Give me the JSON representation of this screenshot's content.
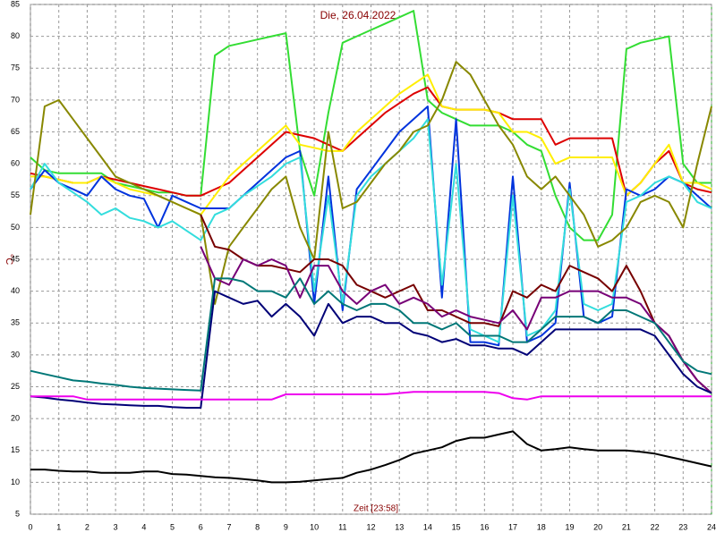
{
  "chart_data": {
    "type": "line",
    "title": "Die, 26.04.2022",
    "xlabel": "Zeit [23:58]",
    "ylabel": "°C",
    "xlim": [
      0,
      24
    ],
    "ylim": [
      5,
      85
    ],
    "grid": true,
    "xticks": [
      0,
      1,
      2,
      3,
      4,
      5,
      6,
      7,
      8,
      9,
      10,
      11,
      12,
      13,
      14,
      15,
      16,
      17,
      18,
      19,
      20,
      21,
      22,
      23,
      24
    ],
    "yticks": [
      5,
      10,
      15,
      20,
      25,
      30,
      35,
      40,
      45,
      50,
      55,
      60,
      65,
      70,
      75,
      80,
      85
    ],
    "x": [
      0,
      0.5,
      1,
      1.5,
      2,
      2.5,
      3,
      3.5,
      4,
      4.5,
      5,
      5.5,
      6,
      6.5,
      7,
      7.5,
      8,
      8.5,
      9,
      9.5,
      10,
      10.5,
      11,
      11.5,
      12,
      12.5,
      13,
      13.5,
      14,
      14.5,
      15,
      15.5,
      16,
      16.5,
      17,
      17.5,
      18,
      18.5,
      19,
      19.5,
      20,
      20.5,
      21,
      21.5,
      22,
      22.5,
      23,
      23.5,
      24
    ],
    "series": [
      {
        "color": "#33dd33",
        "values": [
          61,
          59,
          58.5,
          58.5,
          58.5,
          58.5,
          57,
          56.5,
          56,
          55.5,
          55.5,
          55,
          55,
          77,
          78.5,
          79,
          79.5,
          80,
          80.5,
          62,
          55,
          68,
          79,
          80,
          81,
          82,
          83,
          84,
          70,
          68,
          67,
          66,
          66,
          66,
          65,
          63,
          62,
          55,
          50,
          48,
          48,
          52,
          78,
          79,
          79.5,
          80,
          60,
          57,
          57
        ]
      },
      {
        "color": "#dd0000",
        "values": [
          58.5,
          58,
          57.5,
          57,
          57,
          58,
          57.5,
          57,
          56.5,
          56,
          55.5,
          55,
          55,
          56,
          57,
          59,
          61,
          63,
          65,
          64.5,
          64,
          63,
          62,
          64,
          66,
          68,
          69.5,
          71,
          72,
          69,
          68.5,
          68.5,
          68.5,
          68,
          67,
          67,
          67,
          63,
          64,
          64,
          64,
          64,
          55,
          57,
          60,
          62,
          57,
          56,
          55.5
        ]
      },
      {
        "color": "#ffee00",
        "values": [
          58,
          58,
          57.5,
          57,
          57,
          58,
          57,
          56,
          55.5,
          55,
          54,
          53,
          52,
          55,
          58,
          60,
          62,
          64,
          66,
          63,
          62.5,
          62,
          62,
          65,
          67,
          69,
          71,
          72.5,
          74,
          69,
          68.5,
          68.5,
          68.5,
          68,
          65,
          65,
          64,
          60,
          61,
          61,
          61,
          61,
          55,
          57,
          60,
          63,
          57,
          57,
          56
        ]
      },
      {
        "color": "#0033dd",
        "values": [
          56,
          59,
          57,
          56,
          55,
          58,
          56,
          55,
          54.5,
          50,
          55,
          54,
          53,
          53,
          53,
          55,
          57,
          59,
          61,
          62,
          38,
          58,
          37,
          56,
          59,
          62,
          65,
          67,
          69,
          39,
          67,
          32,
          32,
          31.5,
          58,
          32,
          33,
          35,
          57,
          36,
          35,
          36,
          56,
          55,
          56,
          58,
          57,
          55,
          53
        ]
      },
      {
        "color": "#33dddd",
        "values": [
          56,
          60,
          57,
          55.5,
          54,
          52,
          53,
          51.5,
          51,
          50,
          51,
          49.5,
          48,
          52,
          53,
          55,
          56.5,
          58,
          60,
          61,
          40,
          55,
          38,
          55,
          58,
          60,
          62,
          64,
          67,
          41,
          60,
          34,
          33,
          32,
          55,
          33,
          34,
          37,
          56,
          38,
          37,
          38,
          54,
          55,
          57,
          58,
          57,
          54,
          53
        ]
      },
      {
        "color": "#888800",
        "values": [
          52,
          69,
          70,
          67,
          64,
          61,
          58,
          57,
          56,
          55,
          54,
          53,
          52,
          38,
          47,
          50,
          53,
          56,
          58,
          50,
          45,
          65,
          53,
          54,
          57,
          60,
          62,
          65,
          66,
          70,
          76,
          74,
          70,
          66,
          63,
          58,
          56,
          58,
          55,
          52,
          47,
          48,
          50,
          54,
          55,
          54,
          50,
          60,
          69
        ]
      },
      {
        "color": "#770000",
        "values": [
          null,
          null,
          null,
          null,
          null,
          null,
          null,
          null,
          null,
          null,
          null,
          null,
          52,
          47,
          46.5,
          45,
          44,
          44,
          43.5,
          43,
          45,
          45,
          44,
          41,
          40,
          39,
          40,
          41,
          37,
          37,
          36,
          35,
          35,
          34.5,
          40,
          39,
          41,
          40,
          44,
          43,
          42,
          40,
          44,
          40,
          35,
          33,
          29,
          26,
          24
        ]
      },
      {
        "color": "#770077",
        "values": [
          null,
          null,
          null,
          null,
          null,
          null,
          null,
          null,
          null,
          null,
          null,
          null,
          47,
          42,
          41,
          45,
          44,
          45,
          44,
          39,
          44,
          44,
          40,
          38,
          40,
          41,
          38,
          39,
          38,
          36,
          37,
          36,
          35.5,
          35,
          37,
          34,
          39,
          39,
          40,
          40,
          40,
          39,
          39,
          38,
          35,
          33,
          29,
          26,
          24
        ]
      },
      {
        "color": "#007777",
        "values": [
          27.5,
          27,
          26.5,
          26,
          25.8,
          25.5,
          25.3,
          25,
          24.8,
          24.7,
          24.6,
          24.5,
          24.4,
          42,
          42,
          41.5,
          40,
          40,
          39,
          42,
          38,
          40,
          38,
          37,
          38,
          38,
          37,
          35,
          35,
          34,
          35,
          33,
          33,
          33,
          32,
          32,
          34,
          36,
          36,
          36,
          35,
          37,
          37,
          36,
          35,
          32,
          29,
          27.5,
          27
        ]
      },
      {
        "color": "#000077",
        "values": [
          23.5,
          23.3,
          23,
          22.8,
          22.5,
          22.3,
          22.2,
          22.1,
          22,
          22,
          21.8,
          21.7,
          21.7,
          40,
          39,
          38,
          38.5,
          36,
          38,
          36,
          33,
          38,
          35,
          36,
          36,
          35,
          35,
          33.5,
          33,
          32,
          32.5,
          31.5,
          31.5,
          31,
          31,
          30,
          32,
          34,
          34,
          34,
          34,
          34,
          34,
          34,
          33,
          30,
          27,
          25,
          24
        ]
      },
      {
        "color": "#ee00ee",
        "values": [
          23.5,
          23.5,
          23.5,
          23.5,
          23,
          23,
          23,
          23,
          23,
          23,
          23,
          23,
          23,
          23,
          23,
          23,
          23,
          23,
          23.8,
          23.8,
          23.8,
          23.8,
          23.8,
          23.8,
          23.8,
          23.8,
          24,
          24.2,
          24.2,
          24.2,
          24.2,
          24.2,
          24.2,
          24,
          23.2,
          23,
          23.5,
          23.5,
          23.5,
          23.5,
          23.5,
          23.5,
          23.5,
          23.5,
          23.5,
          23.5,
          23.5,
          23.5,
          23.5
        ]
      },
      {
        "color": "#000000",
        "values": [
          12,
          12,
          11.8,
          11.7,
          11.7,
          11.5,
          11.5,
          11.5,
          11.7,
          11.7,
          11.3,
          11.2,
          11,
          10.8,
          10.7,
          10.5,
          10.3,
          10,
          10,
          10.1,
          10.3,
          10.5,
          10.7,
          11.5,
          12,
          12.7,
          13.5,
          14.5,
          15,
          15.5,
          16.5,
          17,
          17,
          17.5,
          18,
          16,
          15,
          15.2,
          15.5,
          15.2,
          15,
          15,
          15,
          14.8,
          14.5,
          14,
          13.5,
          13,
          12.5
        ]
      }
    ]
  }
}
